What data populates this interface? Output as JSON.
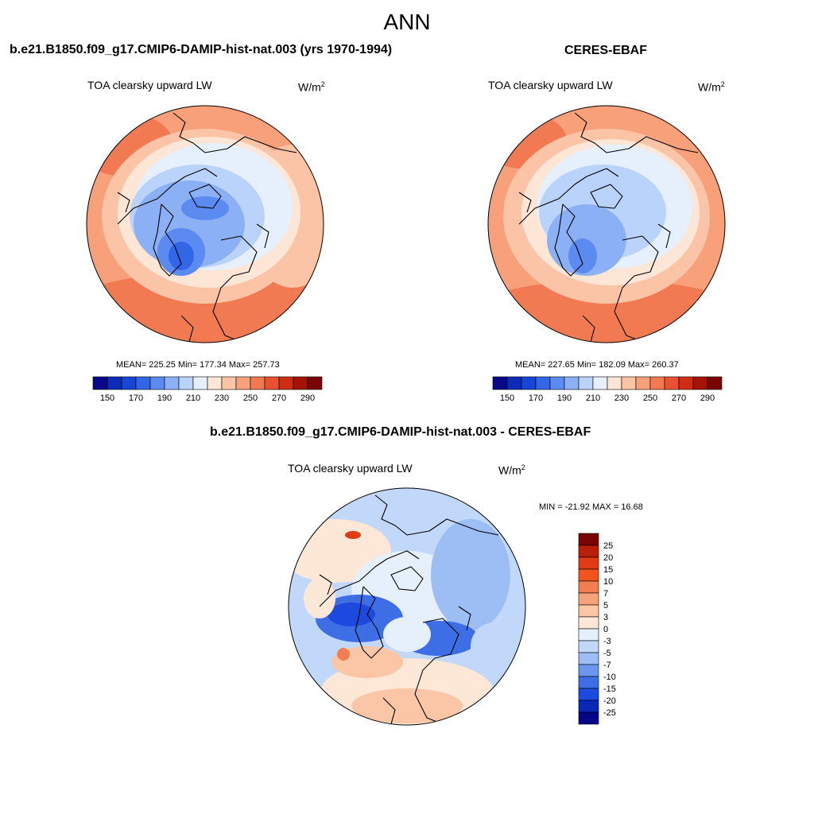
{
  "figure": {
    "title": "ANN"
  },
  "panels": {
    "model": {
      "title": "b.e21.B1850.f09_g17.CMIP6-DAMIP-hist-nat.003 (yrs 1970-1994)",
      "field": "TOA clearsky upward LW",
      "units": "W/m",
      "units_exp": "2",
      "stats": "MEAN= 225.25  Min= 177.34  Max= 257.73"
    },
    "obs": {
      "title": "CERES-EBAF",
      "field": "TOA clearsky upward LW",
      "units": "W/m",
      "units_exp": "2",
      "stats": "MEAN= 227.65  Min= 182.09  Max= 260.37"
    },
    "diff": {
      "title": "b.e21.B1850.f09_g17.CMIP6-DAMIP-hist-nat.003 - CERES-EBAF",
      "field": "TOA clearsky upward LW",
      "units": "W/m",
      "units_exp": "2",
      "stats": "MIN = -21.92 MAX =  16.68"
    }
  },
  "colorbars": {
    "absolute": {
      "colors": [
        "#08088a",
        "#0b2bb8",
        "#1646d6",
        "#3366e6",
        "#5b8af0",
        "#8cb0f5",
        "#b9d3fa",
        "#e6f0fc",
        "#fde6d6",
        "#fbc4a7",
        "#f7a07a",
        "#f27a52",
        "#ea5130",
        "#cf2d14",
        "#a51307",
        "#7a0505"
      ],
      "labels": [
        "150",
        "170",
        "190",
        "210",
        "230",
        "250",
        "270",
        "290"
      ]
    },
    "difference": {
      "colors": [
        "#7a0505",
        "#b81e0a",
        "#e03b14",
        "#f2541e",
        "#f27e52",
        "#f7a27c",
        "#fbc6a6",
        "#fde8d8",
        "#e6f0fc",
        "#c2d8fa",
        "#9dbdf5",
        "#6d97ef",
        "#3e6ee6",
        "#1d4ade",
        "#0b27b8",
        "#06058a"
      ],
      "labels": [
        "25",
        "20",
        "15",
        "10",
        "7",
        "5",
        "3",
        "0",
        "-3",
        "-5",
        "-7",
        "-10",
        "-15",
        "-20",
        "-25"
      ]
    }
  }
}
